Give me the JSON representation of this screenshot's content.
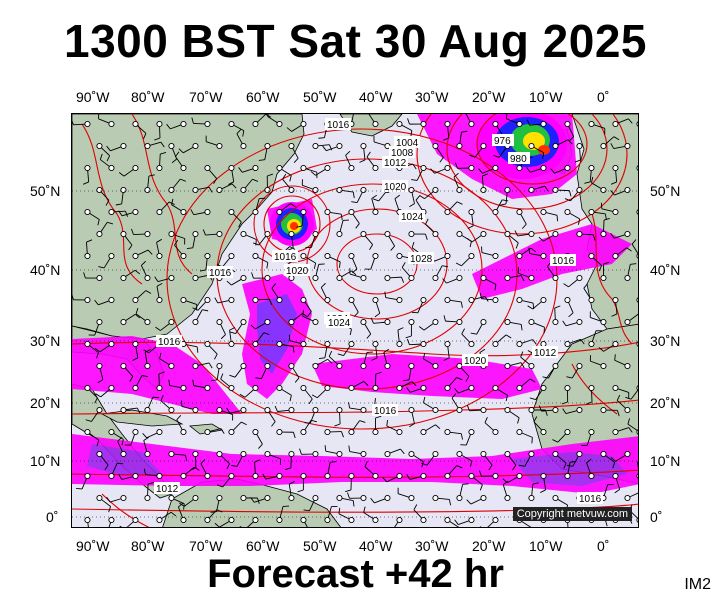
{
  "title": "1300 BST Sat 30 Aug 2025",
  "footer": "Forecast +42 hr",
  "image_id_label": "IM2",
  "copyright": "Copyright metvuw.com",
  "lon_labels": [
    "90˚W",
    "80˚W",
    "70˚W",
    "60˚W",
    "50˚W",
    "40˚W",
    "30˚W",
    "20˚W",
    "10˚W",
    "0˚"
  ],
  "lat_labels": [
    "50˚N",
    "40˚N",
    "30˚N",
    "20˚N",
    "10˚N",
    "0˚"
  ],
  "isobars": [
    "1016",
    "1020",
    "1024",
    "1016",
    "1016",
    "1020",
    "1024",
    "1028",
    "1024",
    "1020",
    "1016",
    "1016",
    "1012",
    "1016",
    "1012",
    "976",
    "980",
    "1004",
    "1008",
    "1012",
    "1016"
  ],
  "colors": {
    "sea": "#e6e6f5",
    "land": "#b9cbb2",
    "isobar": "#e00000",
    "rain_magenta": "#ff00ff",
    "rain_purple": "#a020f0",
    "rain_blue": "#2020ff"
  }
}
